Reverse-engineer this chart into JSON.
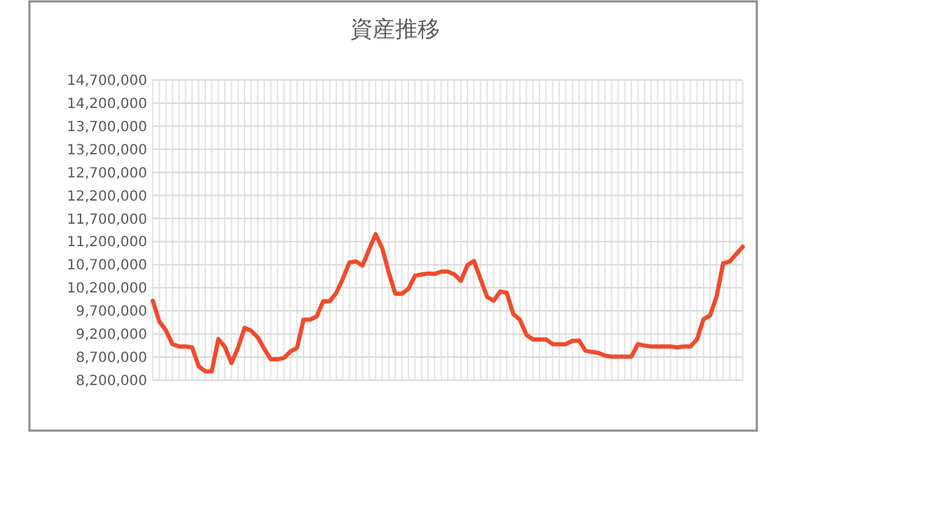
{
  "chart_data": {
    "type": "line",
    "title": "資産推移",
    "categories": [
      null,
      null,
      null,
      null,
      null,
      null,
      null,
      null,
      null,
      null,
      null,
      null,
      null,
      null,
      null,
      null,
      null,
      null,
      null,
      null,
      null,
      null,
      null,
      null,
      null,
      null,
      null,
      null,
      null,
      null,
      null,
      null,
      null,
      null,
      null,
      null,
      null,
      null,
      null,
      null,
      null,
      null,
      null,
      null,
      null,
      null,
      null,
      null,
      null,
      null,
      null,
      null,
      null,
      null,
      null,
      null,
      null,
      null,
      null,
      null,
      null,
      null,
      null,
      null,
      null,
      null,
      null,
      null,
      null,
      null,
      null,
      null,
      null,
      null,
      null,
      null,
      null,
      null,
      null,
      null,
      null,
      null,
      null,
      null,
      null,
      null,
      null,
      null,
      null,
      null,
      null
    ],
    "series": [
      {
        "color": "#f04b2c",
        "values": [
          9920000,
          9470000,
          9280000,
          8980000,
          8930000,
          8930000,
          8910000,
          8500000,
          8390000,
          8390000,
          9090000,
          8920000,
          8570000,
          8900000,
          9330000,
          9270000,
          9130000,
          8880000,
          8650000,
          8650000,
          8680000,
          8820000,
          8900000,
          9510000,
          9510000,
          9580000,
          9910000,
          9910000,
          10090000,
          10400000,
          10750000,
          10770000,
          10680000,
          11030000,
          11360000,
          11060000,
          10530000,
          10070000,
          10070000,
          10180000,
          10460000,
          10490000,
          10510000,
          10500000,
          10550000,
          10550000,
          10490000,
          10350000,
          10690000,
          10780000,
          10390000,
          10000000,
          9920000,
          10120000,
          10090000,
          9630000,
          9510000,
          9180000,
          9080000,
          9080000,
          9080000,
          8980000,
          8980000,
          8980000,
          9050000,
          9060000,
          8840000,
          8810000,
          8790000,
          8730000,
          8710000,
          8710000,
          8710000,
          8710000,
          8980000,
          8950000,
          8930000,
          8930000,
          8930000,
          8930000,
          8910000,
          8930000,
          8930000,
          9080000,
          9520000,
          9600000,
          10010000,
          10730000,
          10770000,
          10930000,
          11090000
        ]
      }
    ],
    "ylim": [
      8200000,
      14700000
    ],
    "yticks": [
      {
        "value": 8200000,
        "label": "8,200,000"
      },
      {
        "value": 8700000,
        "label": "8,700,000"
      },
      {
        "value": 9200000,
        "label": "9,200,000"
      },
      {
        "value": 9700000,
        "label": "9,700,000"
      },
      {
        "value": 10200000,
        "label": "10,200,000"
      },
      {
        "value": 10700000,
        "label": "10,700,000"
      },
      {
        "value": 11200000,
        "label": "11,200,000"
      },
      {
        "value": 11700000,
        "label": "11,700,000"
      },
      {
        "value": 12200000,
        "label": "12,200,000"
      },
      {
        "value": 12700000,
        "label": "12,700,000"
      },
      {
        "value": 13200000,
        "label": "13,200,000"
      },
      {
        "value": 13700000,
        "label": "13,700,000"
      },
      {
        "value": 14200000,
        "label": "14,200,000"
      },
      {
        "value": 14700000,
        "label": "14,700,000"
      }
    ],
    "grid": true,
    "tick_labels": "y",
    "marker": "none",
    "line_style": "solid"
  }
}
